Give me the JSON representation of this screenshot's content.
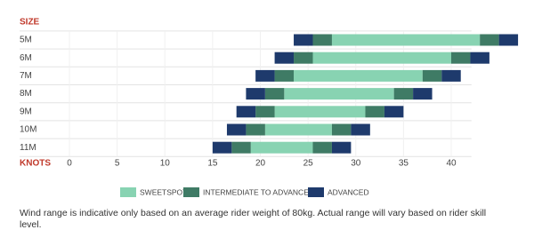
{
  "chart_data": {
    "type": "range-bar",
    "y_label": "SIZE",
    "x_label": "KNOTS",
    "categories": [
      "5M",
      "6M",
      "7M",
      "8M",
      "9M",
      "10M",
      "11M"
    ],
    "xlim": [
      0,
      41
    ],
    "xticks": [
      0,
      5,
      10,
      15,
      20,
      25,
      30,
      35,
      40
    ],
    "series": [
      {
        "name": "SWEETSPOT",
        "color": "#88d3b2",
        "ranges": [
          [
            [
              27.5,
              43
            ]
          ],
          [
            [
              25.5,
              40
            ]
          ],
          [
            [
              23.5,
              37
            ]
          ],
          [
            [
              22.5,
              34
            ]
          ],
          [
            [
              21.5,
              31
            ]
          ],
          [
            [
              20.5,
              27.5
            ]
          ],
          [
            [
              19,
              25.5
            ]
          ]
        ]
      },
      {
        "name": "INTERMEDIATE TO ADVANCED",
        "color": "#3f7b65",
        "ranges": [
          [
            [
              25.5,
              27.5
            ],
            [
              43,
              45
            ]
          ],
          [
            [
              23.5,
              25.5
            ],
            [
              40,
              42
            ]
          ],
          [
            [
              21.5,
              23.5
            ],
            [
              37,
              39
            ]
          ],
          [
            [
              20.5,
              22.5
            ],
            [
              34,
              36
            ]
          ],
          [
            [
              19.5,
              21.5
            ],
            [
              31,
              33
            ]
          ],
          [
            [
              18.5,
              20.5
            ],
            [
              27.5,
              29.5
            ]
          ],
          [
            [
              17,
              19
            ],
            [
              25.5,
              27.5
            ]
          ]
        ]
      },
      {
        "name": "ADVANCED",
        "color": "#1e3a6c",
        "ranges": [
          [
            [
              23.5,
              25.5
            ],
            [
              45,
              47
            ]
          ],
          [
            [
              21.5,
              23.5
            ],
            [
              42,
              44
            ]
          ],
          [
            [
              19.5,
              21.5
            ],
            [
              39,
              41
            ]
          ],
          [
            [
              18.5,
              20.5
            ],
            [
              36,
              38
            ]
          ],
          [
            [
              17.5,
              19.5
            ],
            [
              33,
              35
            ]
          ],
          [
            [
              16.5,
              18.5
            ],
            [
              29.5,
              31.5
            ]
          ],
          [
            [
              15,
              17
            ],
            [
              27.5,
              29.5
            ]
          ]
        ]
      }
    ]
  },
  "note": "Wind range is indicative only based on an average rider weight of 80kg. Actual range will vary based on rider skill level."
}
